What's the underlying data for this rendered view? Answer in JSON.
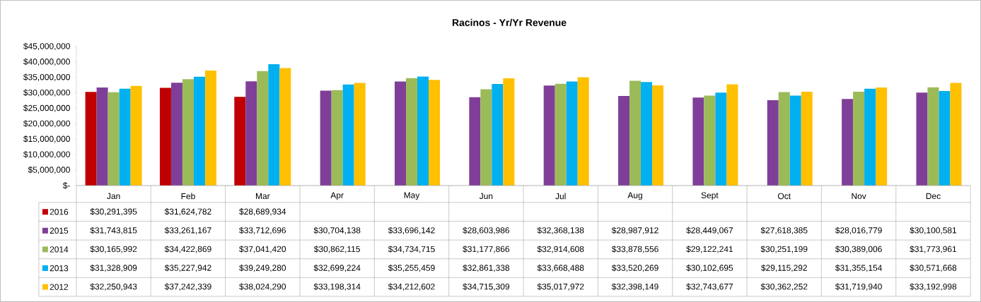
{
  "chart_data": {
    "type": "bar",
    "title": "Racinos - Yr/Yr Revenue",
    "categories": [
      "Jan",
      "Feb",
      "Mar",
      "Apr",
      "May",
      "Jun",
      "Jul",
      "Aug",
      "Sept",
      "Oct",
      "Nov",
      "Dec"
    ],
    "ylim": [
      0,
      45000000
    ],
    "yticks": [
      {
        "value": 0,
        "label": "$-"
      },
      {
        "value": 5000000,
        "label": "$5,000,000"
      },
      {
        "value": 10000000,
        "label": "$10,000,000"
      },
      {
        "value": 15000000,
        "label": "$15,000,000"
      },
      {
        "value": 20000000,
        "label": "$20,000,000"
      },
      {
        "value": 25000000,
        "label": "$25,000,000"
      },
      {
        "value": 30000000,
        "label": "$30,000,000"
      },
      {
        "value": 35000000,
        "label": "$35,000,000"
      },
      {
        "value": 40000000,
        "label": "$40,000,000"
      },
      {
        "value": 45000000,
        "label": "$45,000,000"
      }
    ],
    "legend": "bottom left",
    "series": [
      {
        "name": "2016",
        "color": "#c00000",
        "values": [
          30291395,
          31624782,
          28689934,
          null,
          null,
          null,
          null,
          null,
          null,
          null,
          null,
          null
        ],
        "value_labels": [
          "$30,291,395",
          "$31,624,782",
          "$28,689,934",
          null,
          null,
          null,
          null,
          null,
          null,
          null,
          null,
          null
        ]
      },
      {
        "name": "2015",
        "color": "#7f3f98",
        "values": [
          31743815,
          33261167,
          33712696,
          30704138,
          33696142,
          28603986,
          32368138,
          28987912,
          28449067,
          27618385,
          28016779,
          30100581
        ],
        "value_labels": [
          "$31,743,815",
          "$33,261,167",
          "$33,712,696",
          "$30,704,138",
          "$33,696,142",
          "$28,603,986",
          "$32,368,138",
          "$28,987,912",
          "$28,449,067",
          "$27,618,385",
          "$28,016,779",
          "$30,100,581"
        ]
      },
      {
        "name": "2014",
        "color": "#9bbb59",
        "values": [
          30165992,
          34422869,
          37041420,
          30862115,
          34734715,
          31177866,
          32914608,
          33878556,
          29122241,
          30251199,
          30389006,
          31773961
        ],
        "value_labels": [
          "$30,165,992",
          "$34,422,869",
          "$37,041,420",
          "$30,862,115",
          "$34,734,715",
          "$31,177,866",
          "$32,914,608",
          "$33,878,556",
          "$29,122,241",
          "$30,251,199",
          "$30,389,006",
          "$31,773,961"
        ]
      },
      {
        "name": "2013",
        "color": "#00b0f0",
        "values": [
          31328909,
          35227942,
          39249280,
          32699224,
          35255459,
          32861338,
          33668488,
          33520269,
          30102695,
          29115292,
          31355154,
          30571668
        ],
        "value_labels": [
          "$31,328,909",
          "$35,227,942",
          "$39,249,280",
          "$32,699,224",
          "$35,255,459",
          "$32,861,338",
          "$33,668,488",
          "$33,520,269",
          "$30,102,695",
          "$29,115,292",
          "$31,355,154",
          "$30,571,668"
        ]
      },
      {
        "name": "2012",
        "color": "#ffc000",
        "values": [
          32250943,
          37242339,
          38024290,
          33198314,
          34212602,
          34715309,
          35017972,
          32398149,
          32743677,
          30362252,
          31719940,
          33192998
        ],
        "value_labels": [
          "$32,250,943",
          "$37,242,339",
          "$38,024,290",
          "$33,198,314",
          "$34,212,602",
          "$34,715,309",
          "$35,017,972",
          "$32,398,149",
          "$32,743,677",
          "$30,362,252",
          "$31,719,940",
          "$33,192,998"
        ]
      }
    ]
  }
}
